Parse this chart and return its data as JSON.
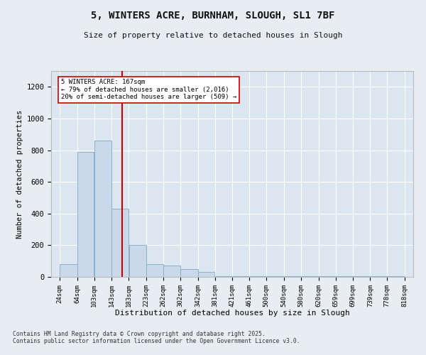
{
  "title": "5, WINTERS ACRE, BURNHAM, SLOUGH, SL1 7BF",
  "subtitle": "Size of property relative to detached houses in Slough",
  "xlabel": "Distribution of detached houses by size in Slough",
  "ylabel": "Number of detached properties",
  "property_size": 167,
  "property_label": "5 WINTERS ACRE: 167sqm",
  "annotation_line1": "← 79% of detached houses are smaller (2,016)",
  "annotation_line2": "20% of semi-detached houses are larger (509) →",
  "footer1": "Contains HM Land Registry data © Crown copyright and database right 2025.",
  "footer2": "Contains public sector information licensed under the Open Government Licence v3.0.",
  "bins": [
    24,
    64,
    103,
    143,
    183,
    223,
    262,
    302,
    342,
    381,
    421,
    461,
    500,
    540,
    580,
    620,
    659,
    699,
    739,
    778,
    818
  ],
  "counts": [
    80,
    790,
    860,
    430,
    200,
    80,
    70,
    50,
    30,
    5,
    3,
    3,
    5,
    3,
    3,
    5,
    3,
    3,
    3,
    5
  ],
  "bar_color": "#c9d9ea",
  "bar_edge_color": "#8ab0cc",
  "line_color": "#cc0000",
  "background_color": "#dce6f0",
  "fig_bg_color": "#e8edf2",
  "ylim": [
    0,
    1300
  ],
  "yticks": [
    0,
    200,
    400,
    600,
    800,
    1000,
    1200
  ]
}
